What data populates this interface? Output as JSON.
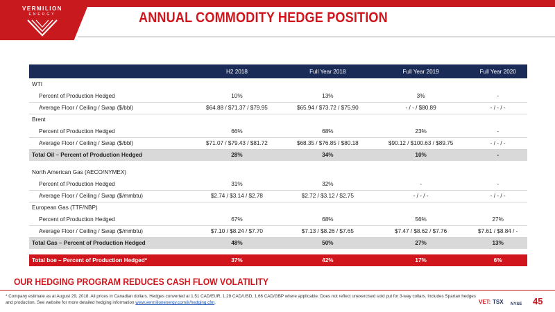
{
  "brand": {
    "name": "VERMILION",
    "sub": "ENERGY",
    "accent": "#d0161c",
    "navy": "#1b2b57"
  },
  "page": {
    "title": "ANNUAL COMMODITY HEDGE POSITION",
    "tagline": "OUR HEDGING PROGRAM REDUCES CASH FLOW VOLATILITY",
    "footnote": "* Company estimate as at August 29, 2018. All prices in Canadian dollars. Hedges converted at 1.51 CAD/EUR, 1.29 CAD/USD, 1.66 CAD/GBP where applicable. Does not reflect unexercised sold put for 3-way collars. Includes Spartan hedges and production. See website for more detailed hedging information",
    "footnote_link": "www.vermilionenergy.com/ir/hedging.cfm",
    "footnote_end": ".",
    "page_number": "45",
    "tickers": {
      "vet": "VET:",
      "tsx": "TSX",
      "nyse": "NYSE"
    }
  },
  "table": {
    "columns": [
      "",
      "H2 2018",
      "Full Year 2018",
      "Full Year 2019",
      "Full Year 2020"
    ],
    "wti": {
      "label": "WTI",
      "pct_label": "Percent of Production Hedged",
      "pct": [
        "10%",
        "13%",
        "3%",
        "-"
      ],
      "price_label": "Average Floor / Ceiling / Swap ($/bbl)",
      "price": [
        "$64.88 / $71.37 / $79.95",
        "$65.94 / $73.72 / $75.90",
        "- / - / $80.89",
        "- / - / -"
      ]
    },
    "brent": {
      "label": "Brent",
      "pct_label": "Percent of Production Hedged",
      "pct": [
        "66%",
        "68%",
        "23%",
        "-"
      ],
      "price_label": "Average Floor / Ceiling / Swap ($/bbl)",
      "price": [
        "$71.07 / $79.43 / $81.72",
        "$68.35 / $76.85 / $80.18",
        "$90.12 / $100.63 / $89.75",
        "- / - / -"
      ]
    },
    "total_oil": {
      "label": "Total Oil – Percent of Production Hedged",
      "values": [
        "28%",
        "34%",
        "10%",
        "-"
      ]
    },
    "na_gas": {
      "label": "North American Gas (AECO/NYMEX)",
      "pct_label": "Percent of Production Hedged",
      "pct": [
        "31%",
        "32%",
        "-",
        "-"
      ],
      "price_label": "Average Floor / Ceiling / Swap ($/mmbtu)",
      "price": [
        "$2.74 / $3.14 / $2.78",
        "$2.72 / $3.12 / $2.75",
        "- / - / -",
        "- / - / -"
      ]
    },
    "eu_gas": {
      "label": "European Gas (TTF/NBP)",
      "pct_label": "Percent of Production Hedged",
      "pct": [
        "67%",
        "68%",
        "56%",
        "27%"
      ],
      "price_label": "Average Floor / Ceiling / Swap ($/mmbtu)",
      "price": [
        "$7.10 / $8.24 / $7.70",
        "$7.13 / $8.26 / $7.65",
        "$7.47 / $8.62 / $7.76",
        "$7.61 / $8.84 / -"
      ]
    },
    "total_gas": {
      "label": "Total Gas – Percent of Production Hedged",
      "values": [
        "48%",
        "50%",
        "27%",
        "13%"
      ]
    },
    "total_boe": {
      "label": "Total boe – Percent of Production Hedged*",
      "values": [
        "37%",
        "42%",
        "17%",
        "6%"
      ]
    }
  }
}
